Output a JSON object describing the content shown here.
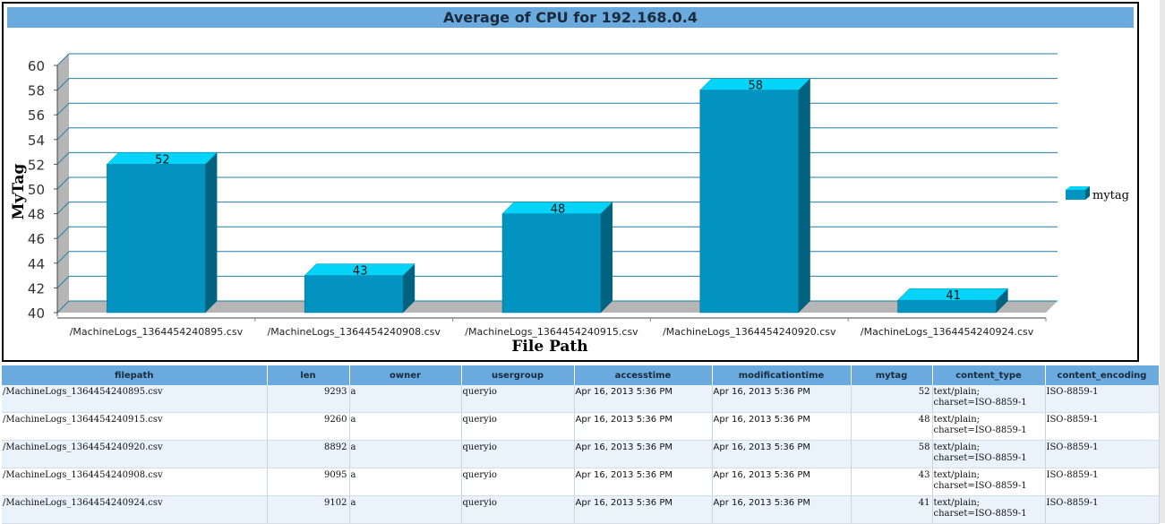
{
  "chart_data": {
    "type": "bar",
    "title": "Average of CPU for 192.168.0.4",
    "xlabel": "File Path",
    "ylabel": "MyTag",
    "categories": [
      "/MachineLogs_1364454240895.csv",
      "/MachineLogs_1364454240908.csv",
      "/MachineLogs_1364454240915.csv",
      "/MachineLogs_1364454240920.csv",
      "/MachineLogs_1364454240924.csv"
    ],
    "series": [
      {
        "name": "mytag",
        "values": [
          52,
          43,
          48,
          58,
          41
        ]
      }
    ],
    "ylim": [
      40,
      60
    ],
    "yticks": [
      40,
      42,
      44,
      46,
      48,
      50,
      52,
      54,
      56,
      58,
      60
    ],
    "grid": true,
    "legend": "right",
    "colors": {
      "bar_front": "#0293c0",
      "bar_top": "#05d3f8",
      "bar_side": "#01637f",
      "grid": "#1f7fa6",
      "floor": "#b5b5b5"
    }
  },
  "table": {
    "columns": [
      "filepath",
      "len",
      "owner",
      "usergroup",
      "accesstime",
      "modificationtime",
      "mytag",
      "content_type",
      "content_encoding"
    ],
    "rows": [
      [
        "/MachineLogs_1364454240895.csv",
        "9293",
        "a",
        "queryio",
        "Apr 16, 2013 5:36 PM",
        "Apr 16, 2013 5:36 PM",
        "52",
        "text/plain; charset=ISO-8859-1",
        "ISO-8859-1"
      ],
      [
        "/MachineLogs_1364454240915.csv",
        "9260",
        "a",
        "queryio",
        "Apr 16, 2013 5:36 PM",
        "Apr 16, 2013 5:36 PM",
        "48",
        "text/plain; charset=ISO-8859-1",
        "ISO-8859-1"
      ],
      [
        "/MachineLogs_1364454240920.csv",
        "8892",
        "a",
        "queryio",
        "Apr 16, 2013 5:36 PM",
        "Apr 16, 2013 5:36 PM",
        "58",
        "text/plain; charset=ISO-8859-1",
        "ISO-8859-1"
      ],
      [
        "/MachineLogs_1364454240908.csv",
        "9095",
        "a",
        "queryio",
        "Apr 16, 2013 5:36 PM",
        "Apr 16, 2013 5:36 PM",
        "43",
        "text/plain; charset=ISO-8859-1",
        "ISO-8859-1"
      ],
      [
        "/MachineLogs_1364454240924.csv",
        "9102",
        "a",
        "queryio",
        "Apr 16, 2013 5:36 PM",
        "Apr 16, 2013 5:36 PM",
        "41",
        "text/plain; charset=ISO-8859-1",
        "ISO-8859-1"
      ]
    ]
  }
}
